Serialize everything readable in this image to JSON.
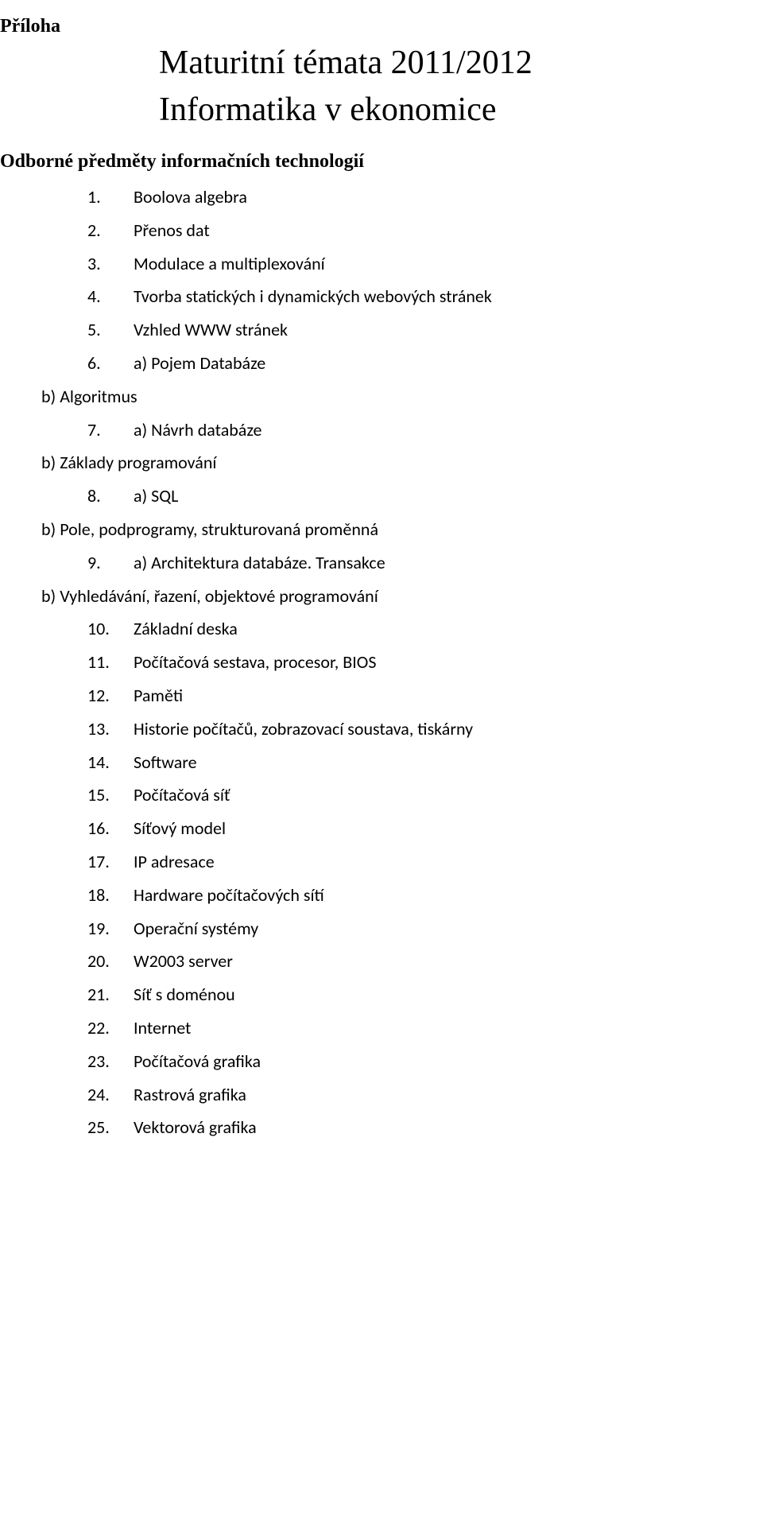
{
  "doc_label": "Příloha",
  "title_line1": "Maturitní témata 2011/2012",
  "title_line2": "Informatika v ekonomice",
  "section_heading": "Odborné předměty informačních technologií",
  "items": [
    {
      "n": "1.",
      "t": "Boolova algebra"
    },
    {
      "n": "2.",
      "t": "Přenos dat"
    },
    {
      "n": "3.",
      "t": "Modulace a multiplexování"
    },
    {
      "n": "4.",
      "t": "Tvorba statických i dynamických webových stránek"
    },
    {
      "n": "5.",
      "t": "Vzhled WWW stránek"
    },
    {
      "n": "6.",
      "t": "a) Pojem Databáze"
    },
    {
      "sub": true,
      "t": "b) Algoritmus"
    },
    {
      "n": "7.",
      "t": "a) Návrh databáze"
    },
    {
      "sub": true,
      "t": "b) Základy programování"
    },
    {
      "n": "8.",
      "t": "a) SQL"
    },
    {
      "sub": true,
      "t": "b) Pole, podprogramy, strukturovaná proměnná"
    },
    {
      "n": "9.",
      "t": "a) Architektura databáze. Transakce"
    },
    {
      "sub": true,
      "t": "b) Vyhledávání, řazení, objektové programování"
    },
    {
      "n": "10.",
      "t": "Základní deska"
    },
    {
      "n": "11.",
      "t": "Počítačová sestava, procesor, BIOS"
    },
    {
      "n": "12.",
      "t": "Paměti"
    },
    {
      "n": "13.",
      "t": "Historie počítačů, zobrazovací soustava, tiskárny"
    },
    {
      "n": "14.",
      "t": "Software"
    },
    {
      "n": "15.",
      "t": "Počítačová síť"
    },
    {
      "n": "16.",
      "t": "Síťový model"
    },
    {
      "n": "17.",
      "t": "IP adresace"
    },
    {
      "n": "18.",
      "t": "Hardware počítačových sítí"
    },
    {
      "n": "19.",
      "t": "Operační systémy"
    },
    {
      "n": "20.",
      "t": "W2003 server"
    },
    {
      "n": "21.",
      "t": "Síť s doménou"
    },
    {
      "n": "22.",
      "t": "Internet"
    },
    {
      "n": "23.",
      "t": "Počítačová grafika"
    },
    {
      "n": "24.",
      "t": "Rastrová grafika"
    },
    {
      "n": "25.",
      "t": "Vektorová grafika"
    }
  ]
}
